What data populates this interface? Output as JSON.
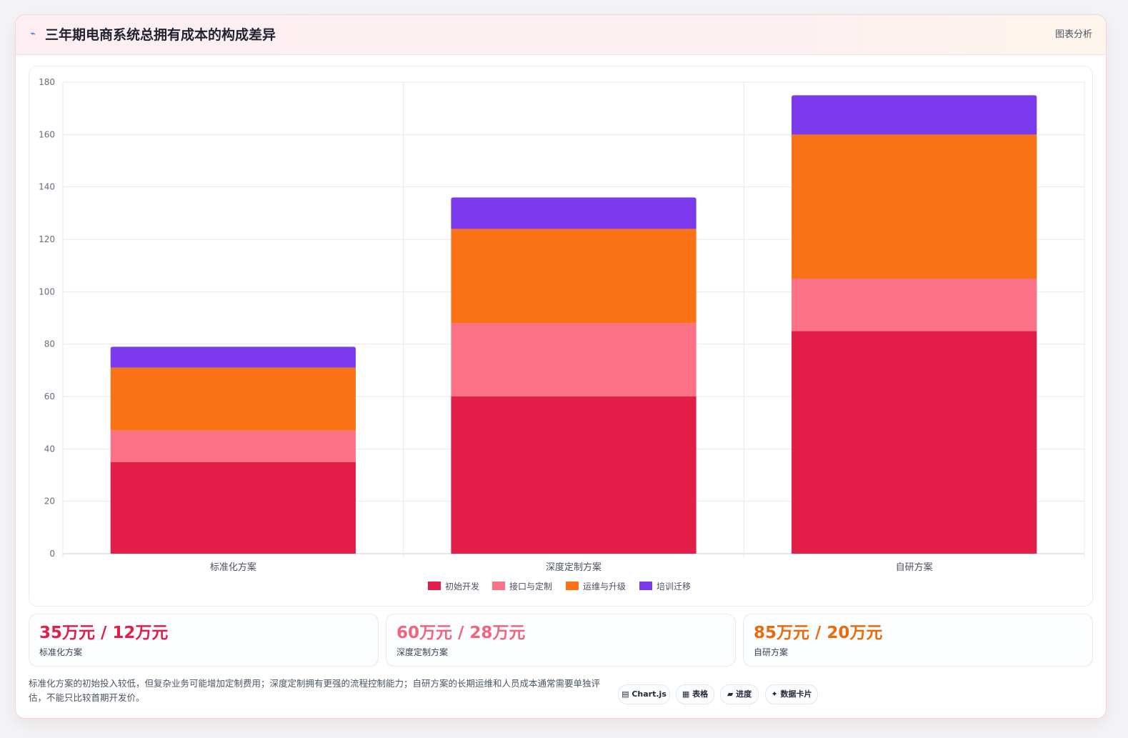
{
  "header": {
    "icon": "line-chart-icon",
    "title": "三年期电商系统总拥有成本的构成差异",
    "link_label": "图表分析"
  },
  "chart_data": {
    "type": "bar",
    "stacked": true,
    "categories": [
      "标准化方案",
      "深度定制方案",
      "自研方案"
    ],
    "series": [
      {
        "name": "初始开发",
        "color": "#e11d48",
        "values": [
          35,
          60,
          85
        ]
      },
      {
        "name": "接口与定制",
        "color": "#fb7185",
        "values": [
          12,
          28,
          20
        ]
      },
      {
        "name": "运维与升级",
        "color": "#f97316",
        "values": [
          24,
          36,
          55
        ]
      },
      {
        "name": "培训迁移",
        "color": "#7c3aed",
        "values": [
          8,
          12,
          15
        ]
      }
    ],
    "ylim": [
      0,
      180
    ],
    "yticks": [
      0,
      20,
      40,
      60,
      80,
      100,
      120,
      140,
      160,
      180
    ],
    "grid": true,
    "legend_position": "bottom"
  },
  "stats": [
    {
      "value": "35万元 / 12万元",
      "label": "标准化方案",
      "color": "#e11d48"
    },
    {
      "value": "60万元 / 28万元",
      "label": "深度定制方案",
      "color": "#f0647d"
    },
    {
      "value": "85万元 / 20万元",
      "label": "自研方案",
      "color": "#ea6a0c"
    }
  ],
  "note": "标准化方案的初始投入较低，但复杂业务可能增加定制费用；深度定制拥有更强的流程控制能力；自研方案的长期运维和人员成本通常需要单独评估，不能只比较首期开发价。",
  "chips": [
    {
      "icon": "chart-icon",
      "glyph": "▤",
      "label": "Chart.js"
    },
    {
      "icon": "table-icon",
      "glyph": "▦",
      "label": "表格"
    },
    {
      "icon": "progress-icon",
      "glyph": "▰",
      "label": "进度"
    },
    {
      "icon": "sparkle-icon",
      "glyph": "✦",
      "label": "数据卡片"
    }
  ]
}
